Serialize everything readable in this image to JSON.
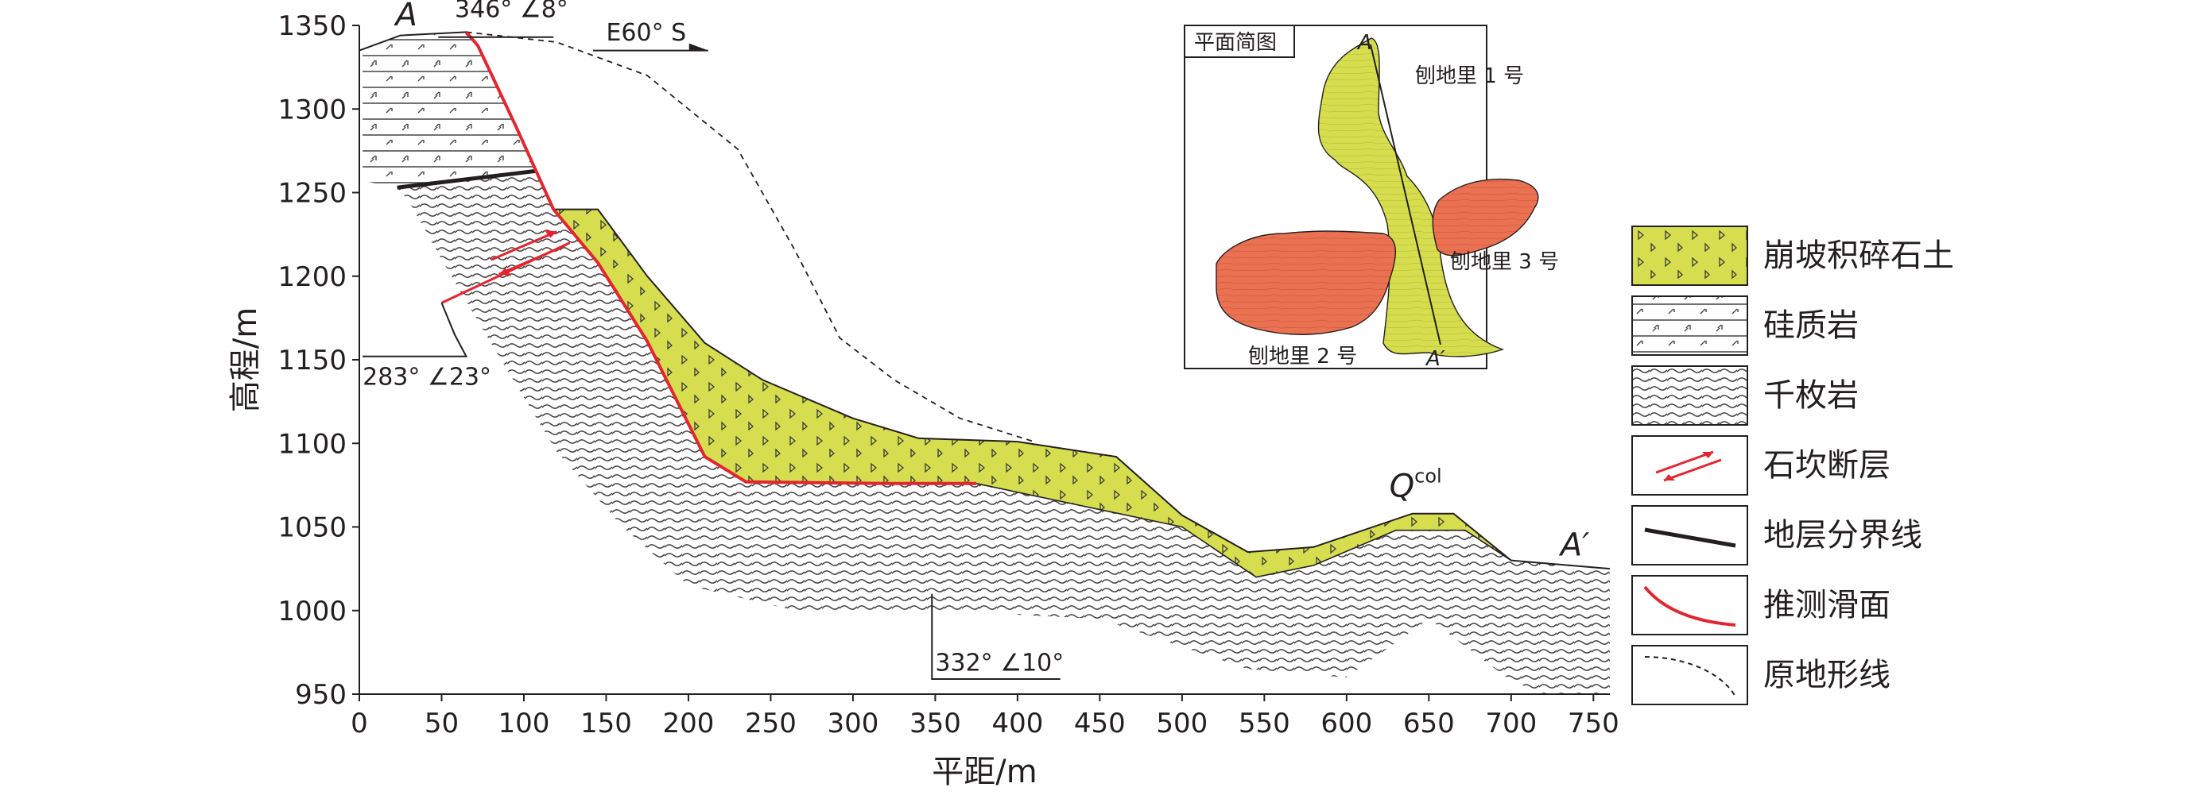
{
  "chart_data": {
    "type": "geologic-cross-section",
    "xlabel": "平距/m",
    "ylabel": "高程/m",
    "xlim": [
      0,
      760
    ],
    "ylim": [
      950,
      1350
    ],
    "x_ticks": [
      0,
      50,
      100,
      150,
      200,
      250,
      300,
      350,
      400,
      450,
      500,
      550,
      600,
      650,
      700,
      750
    ],
    "y_ticks": [
      950,
      1000,
      1050,
      1100,
      1150,
      1200,
      1250,
      1300,
      1350
    ],
    "section_start": "A",
    "section_end": "A′",
    "direction": "E60° S",
    "attitudes": [
      {
        "text": "346° ∠8°",
        "x": 58,
        "y": 1355
      },
      {
        "text": "283° ∠23°",
        "x": 2,
        "y": 1152
      },
      {
        "text": "332° ∠10°",
        "x": 350,
        "y": 1002
      }
    ],
    "deposit_label": {
      "base": "Q",
      "sup": "col",
      "x": 626,
      "y": 1068
    },
    "ground_surface": [
      [
        0,
        1335
      ],
      [
        25,
        1344
      ],
      [
        65,
        1346
      ],
      [
        72,
        1338
      ],
      [
        95,
        1290
      ],
      [
        118,
        1240
      ],
      [
        145,
        1240
      ],
      [
        175,
        1200
      ],
      [
        210,
        1160
      ],
      [
        245,
        1138
      ],
      [
        300,
        1115
      ],
      [
        340,
        1103
      ],
      [
        400,
        1101
      ],
      [
        460,
        1092
      ],
      [
        500,
        1057
      ],
      [
        540,
        1035
      ],
      [
        580,
        1038
      ],
      [
        640,
        1058
      ],
      [
        665,
        1058
      ],
      [
        700,
        1030
      ],
      [
        760,
        1025
      ]
    ],
    "original_ground_line": [
      [
        65,
        1346
      ],
      [
        120,
        1340
      ],
      [
        175,
        1320
      ],
      [
        230,
        1276
      ],
      [
        265,
        1215
      ],
      [
        292,
        1163
      ],
      [
        325,
        1138
      ],
      [
        365,
        1115
      ],
      [
        410,
        1101
      ]
    ],
    "sliding_surface": [
      [
        65,
        1346
      ],
      [
        72,
        1338
      ],
      [
        95,
        1290
      ],
      [
        118,
        1240
      ],
      [
        145,
        1208
      ],
      [
        175,
        1161
      ],
      [
        210,
        1092
      ],
      [
        235,
        1077
      ],
      [
        320,
        1076
      ],
      [
        375,
        1076
      ]
    ],
    "stratum_boundary": [
      [
        23,
        1253
      ],
      [
        108,
        1263
      ]
    ],
    "fault": {
      "plane": [
        [
          50,
          1184
        ],
        [
          128,
          1220
        ]
      ],
      "step": [
        [
          50,
          1184
        ],
        [
          58,
          1165
        ],
        [
          65,
          1152
        ],
        [
          2,
          1152
        ]
      ]
    },
    "deposit_lower_boundary": [
      [
        375,
        1076
      ],
      [
        500,
        1050
      ],
      [
        545,
        1020
      ],
      [
        580,
        1027
      ],
      [
        630,
        1048
      ],
      [
        672,
        1048
      ],
      [
        700,
        1030
      ]
    ],
    "siliceous_rock_region": [
      [
        2,
        1335
      ],
      [
        25,
        1344
      ],
      [
        65,
        1346
      ],
      [
        72,
        1338
      ],
      [
        95,
        1290
      ],
      [
        118,
        1240
      ],
      [
        108,
        1263
      ],
      [
        23,
        1253
      ],
      [
        2,
        1257
      ]
    ],
    "phyllite_region": [
      [
        23,
        1253
      ],
      [
        108,
        1263
      ],
      [
        118,
        1240
      ],
      [
        145,
        1208
      ],
      [
        175,
        1161
      ],
      [
        210,
        1092
      ],
      [
        235,
        1077
      ],
      [
        375,
        1076
      ],
      [
        500,
        1050
      ],
      [
        545,
        1020
      ],
      [
        580,
        1027
      ],
      [
        630,
        1048
      ],
      [
        672,
        1048
      ],
      [
        700,
        1030
      ],
      [
        760,
        1025
      ],
      [
        760,
        950
      ],
      [
        720,
        950
      ],
      [
        700,
        958
      ],
      [
        650,
        995
      ],
      [
        600,
        960
      ],
      [
        540,
        965
      ],
      [
        450,
        995
      ],
      [
        350,
        1000
      ],
      [
        265,
        1000
      ],
      [
        200,
        1015
      ],
      [
        160,
        1050
      ],
      [
        120,
        1095
      ],
      [
        80,
        1160
      ],
      [
        50,
        1210
      ],
      [
        30,
        1245
      ]
    ],
    "legend": [
      {
        "label": "崩坡积碎石土",
        "key": "colluvium"
      },
      {
        "label": "硅质岩",
        "key": "siliceous"
      },
      {
        "label": "千枚岩",
        "key": "phyllite"
      },
      {
        "label": "石坎断层",
        "key": "fault"
      },
      {
        "label": "地层分界线",
        "key": "boundary"
      },
      {
        "label": "推测滑面",
        "key": "slip"
      },
      {
        "label": "原地形线",
        "key": "original"
      }
    ],
    "inset_map": {
      "title": "平面简图",
      "point_a": "A",
      "point_a_prime": "A′",
      "bodies": [
        {
          "label": "刨地里 1 号",
          "color": "#d6de4f"
        },
        {
          "label": "刨地里 2 号",
          "color": "#ea7151"
        },
        {
          "label": "刨地里 3 号",
          "color": "#ea7151"
        }
      ]
    }
  },
  "colors": {
    "colluvium": "#d6de4f",
    "landslide_red": "#ea7151",
    "slip_surface": "#e32530",
    "ink": "#231f20",
    "hatch": "#5a5a5a"
  }
}
